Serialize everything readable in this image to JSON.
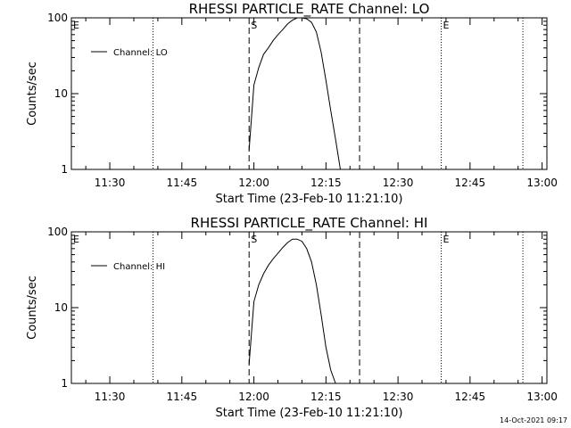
{
  "timestamp": "14-Oct-2021 09:17",
  "colors": {
    "background": "#ffffff",
    "foreground": "#000000"
  },
  "chart_data": [
    {
      "type": "line",
      "title": "RHESSI PARTICLE_RATE Channel: LO",
      "xlabel": "Start Time (23-Feb-10 11:21:10)",
      "ylabel": "Counts/sec",
      "y_scale": "log",
      "xlim": [
        "11:22",
        "13:01"
      ],
      "ylim": [
        1,
        100
      ],
      "x_ticks": [
        "11:30",
        "11:45",
        "12:00",
        "12:15",
        "12:30",
        "12:45",
        "13:00"
      ],
      "y_ticks": [
        "1",
        "10",
        "100"
      ],
      "legend": {
        "position": "top-left",
        "entries": [
          "Channel: LO"
        ]
      },
      "markers": [
        {
          "label": "E",
          "time": "11:22",
          "style": "none"
        },
        {
          "label": "",
          "time": "11:39",
          "style": "dotted"
        },
        {
          "label": "S",
          "time": "11:59",
          "style": "dashed"
        },
        {
          "label": "",
          "time": "12:22",
          "style": "dashed"
        },
        {
          "label": "E",
          "time": "12:39",
          "style": "dotted"
        },
        {
          "label": "",
          "time": "12:56",
          "style": "dotted"
        }
      ],
      "series": [
        {
          "name": "Channel: LO",
          "x": [
            "11:59",
            "12:00",
            "12:01",
            "12:02",
            "12:03",
            "12:04",
            "12:05",
            "12:06",
            "12:07",
            "12:08",
            "12:09",
            "12:10",
            "12:11",
            "12:12",
            "12:13",
            "12:14",
            "12:15",
            "12:16",
            "12:17",
            "12:18"
          ],
          "values": [
            1.8,
            13,
            22,
            33,
            40,
            50,
            60,
            70,
            83,
            93,
            100,
            100,
            97,
            87,
            65,
            35,
            15,
            6,
            2.5,
            1
          ]
        }
      ]
    },
    {
      "type": "line",
      "title": "RHESSI PARTICLE_RATE Channel: HI",
      "xlabel": "Start Time (23-Feb-10 11:21:10)",
      "ylabel": "Counts/sec",
      "y_scale": "log",
      "xlim": [
        "11:22",
        "13:01"
      ],
      "ylim": [
        1,
        100
      ],
      "x_ticks": [
        "11:30",
        "11:45",
        "12:00",
        "12:15",
        "12:30",
        "12:45",
        "13:00"
      ],
      "y_ticks": [
        "1",
        "10",
        "100"
      ],
      "legend": {
        "position": "top-left",
        "entries": [
          "Channel: HI"
        ]
      },
      "markers": [
        {
          "label": "E",
          "time": "11:22",
          "style": "none"
        },
        {
          "label": "",
          "time": "11:39",
          "style": "dotted"
        },
        {
          "label": "S",
          "time": "11:59",
          "style": "dashed"
        },
        {
          "label": "",
          "time": "12:22",
          "style": "dashed"
        },
        {
          "label": "E",
          "time": "12:39",
          "style": "dotted"
        },
        {
          "label": "",
          "time": "12:56",
          "style": "dotted"
        }
      ],
      "series": [
        {
          "name": "Channel: HI",
          "x": [
            "11:59",
            "12:00",
            "12:01",
            "12:02",
            "12:03",
            "12:04",
            "12:05",
            "12:06",
            "12:07",
            "12:08",
            "12:09",
            "12:10",
            "12:11",
            "12:12",
            "12:13",
            "12:14",
            "12:15",
            "12:16",
            "12:17"
          ],
          "values": [
            1.8,
            12,
            20,
            28,
            36,
            44,
            52,
            62,
            72,
            80,
            80,
            75,
            60,
            40,
            20,
            8,
            3,
            1.5,
            1
          ]
        }
      ]
    }
  ]
}
